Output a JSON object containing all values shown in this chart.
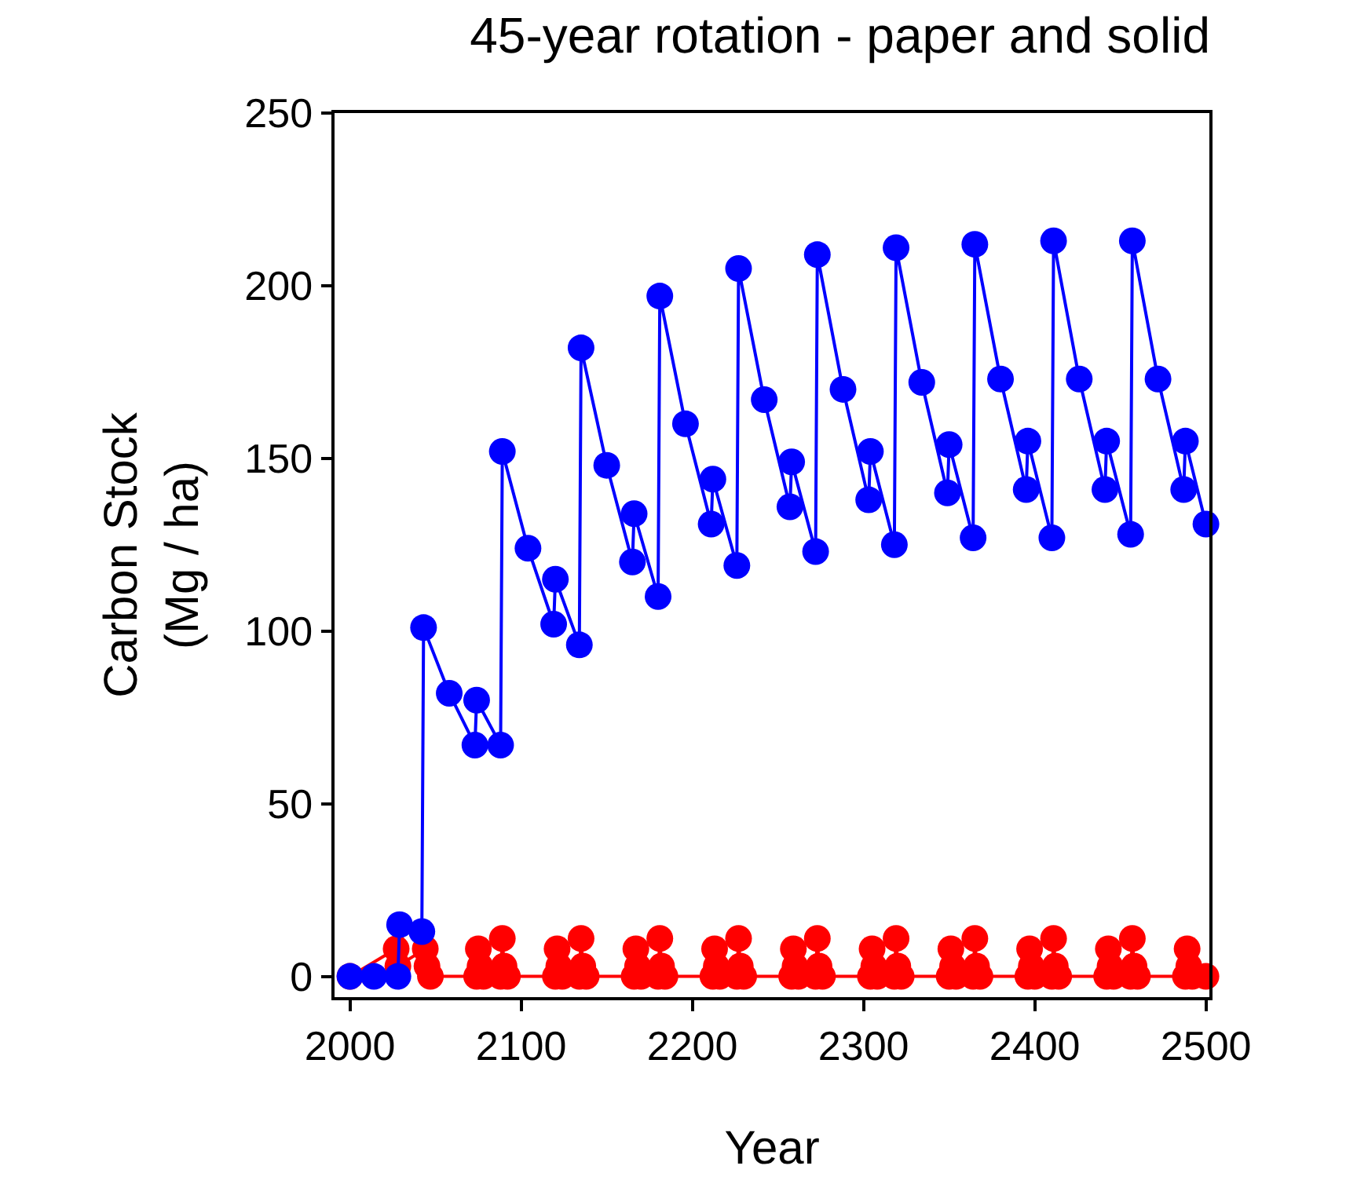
{
  "chart_data": {
    "type": "line",
    "title": "45-year rotation - paper and solid",
    "xlabel": "Year",
    "ylabel": "Carbon Stock\n(Mg / ha)",
    "xlim": [
      1991,
      2502
    ],
    "xticks": [
      2000,
      2100,
      2200,
      2300,
      2400,
      2500
    ],
    "ylim": [
      -6,
      250
    ],
    "yticks": [
      0,
      50,
      100,
      150,
      200,
      250
    ],
    "grid": false,
    "legend": false,
    "marker": "circle",
    "line_style": "solid",
    "series": [
      {
        "color": "#ff0000",
        "x": [
          2000,
          2027,
          2028,
          2044,
          2045,
          2047,
          2074,
          2075,
          2076,
          2078,
          2088,
          2089,
          2090,
          2092,
          2120,
          2121,
          2122,
          2124,
          2134,
          2135,
          2136,
          2138,
          2166,
          2167,
          2168,
          2170,
          2180,
          2181,
          2182,
          2184,
          2212,
          2213,
          2214,
          2216,
          2226,
          2227,
          2228,
          2230,
          2258,
          2259,
          2260,
          2262,
          2272,
          2273,
          2274,
          2276,
          2304,
          2305,
          2306,
          2308,
          2318,
          2319,
          2320,
          2322,
          2350,
          2351,
          2352,
          2354,
          2364,
          2365,
          2366,
          2368,
          2396,
          2397,
          2398,
          2400,
          2410,
          2411,
          2412,
          2414,
          2442,
          2443,
          2444,
          2446,
          2456,
          2457,
          2458,
          2460,
          2488,
          2489,
          2490,
          2492,
          2500
        ],
        "values": [
          0,
          8,
          3,
          8,
          3,
          0,
          0,
          8,
          3,
          0,
          0,
          11,
          3,
          0,
          0,
          8,
          3,
          0,
          0,
          11,
          3,
          0,
          0,
          8,
          3,
          0,
          0,
          11,
          3,
          0,
          0,
          8,
          3,
          0,
          0,
          11,
          3,
          0,
          0,
          8,
          3,
          0,
          0,
          11,
          3,
          0,
          0,
          8,
          3,
          0,
          0,
          11,
          3,
          0,
          0,
          8,
          3,
          0,
          0,
          11,
          3,
          0,
          0,
          8,
          3,
          0,
          0,
          11,
          3,
          0,
          0,
          8,
          3,
          0,
          0,
          11,
          3,
          0,
          0,
          8,
          3,
          0,
          0
        ]
      },
      {
        "color": "#0000ff",
        "x": [
          2000,
          2014,
          2028,
          2029,
          2042,
          2043,
          2058,
          2073,
          2074,
          2088,
          2089,
          2104,
          2119,
          2120,
          2134,
          2135,
          2150,
          2165,
          2166,
          2180,
          2181,
          2196,
          2211,
          2212,
          2226,
          2227,
          2242,
          2257,
          2258,
          2272,
          2273,
          2288,
          2303,
          2304,
          2318,
          2319,
          2334,
          2349,
          2350,
          2364,
          2365,
          2380,
          2395,
          2396,
          2410,
          2411,
          2426,
          2441,
          2442,
          2456,
          2457,
          2472,
          2487,
          2488,
          2500
        ],
        "values": [
          0,
          0,
          0,
          15,
          13,
          101,
          82,
          67,
          80,
          67,
          152,
          124,
          102,
          115,
          96,
          182,
          148,
          120,
          134,
          110,
          197,
          160,
          131,
          144,
          119,
          205,
          167,
          136,
          149,
          123,
          209,
          170,
          138,
          152,
          125,
          211,
          172,
          140,
          154,
          127,
          212,
          173,
          141,
          155,
          127,
          213,
          173,
          141,
          155,
          128,
          213,
          173,
          141,
          155,
          131
        ]
      }
    ]
  }
}
